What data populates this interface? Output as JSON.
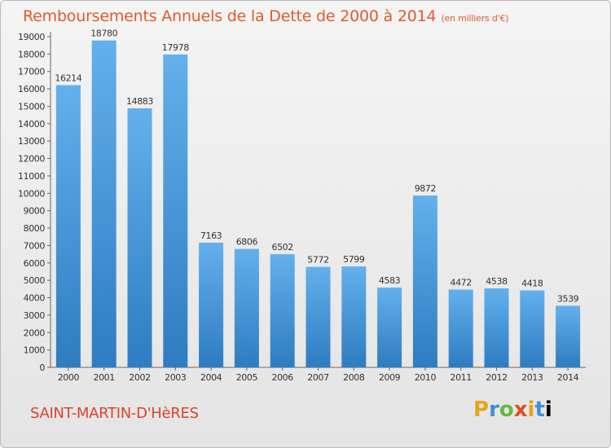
{
  "title": "Remboursements Annuels de la Dette de 2000 à 2014",
  "unit_note": "(en milliers d'€)",
  "commune": "SAINT-MARTIN-D'HèRES",
  "logo_letters": [
    "P",
    "r",
    "o",
    "x",
    "i",
    "t",
    "i"
  ],
  "colors": {
    "bar_top": "#63b0ec",
    "bar_bottom": "#2e7cc1",
    "title": "#e25a2a",
    "commune": "#d9452a"
  },
  "chart_data": {
    "type": "bar",
    "title": "Remboursements Annuels de la Dette de 2000 à 2014",
    "categories": [
      "2000",
      "2001",
      "2002",
      "2003",
      "2004",
      "2005",
      "2006",
      "2007",
      "2008",
      "2009",
      "2010",
      "2011",
      "2012",
      "2013",
      "2014"
    ],
    "values": [
      16214,
      18780,
      14883,
      17978,
      7163,
      6806,
      6502,
      5772,
      5799,
      4583,
      9872,
      4472,
      4538,
      4418,
      3539
    ],
    "ylim": [
      0,
      19000
    ],
    "yticks": [
      0,
      1000,
      2000,
      3000,
      4000,
      5000,
      6000,
      7000,
      8000,
      9000,
      10000,
      11000,
      12000,
      13000,
      14000,
      15000,
      16000,
      17000,
      18000,
      19000
    ],
    "grid": false,
    "xlabel": "",
    "ylabel": ""
  }
}
